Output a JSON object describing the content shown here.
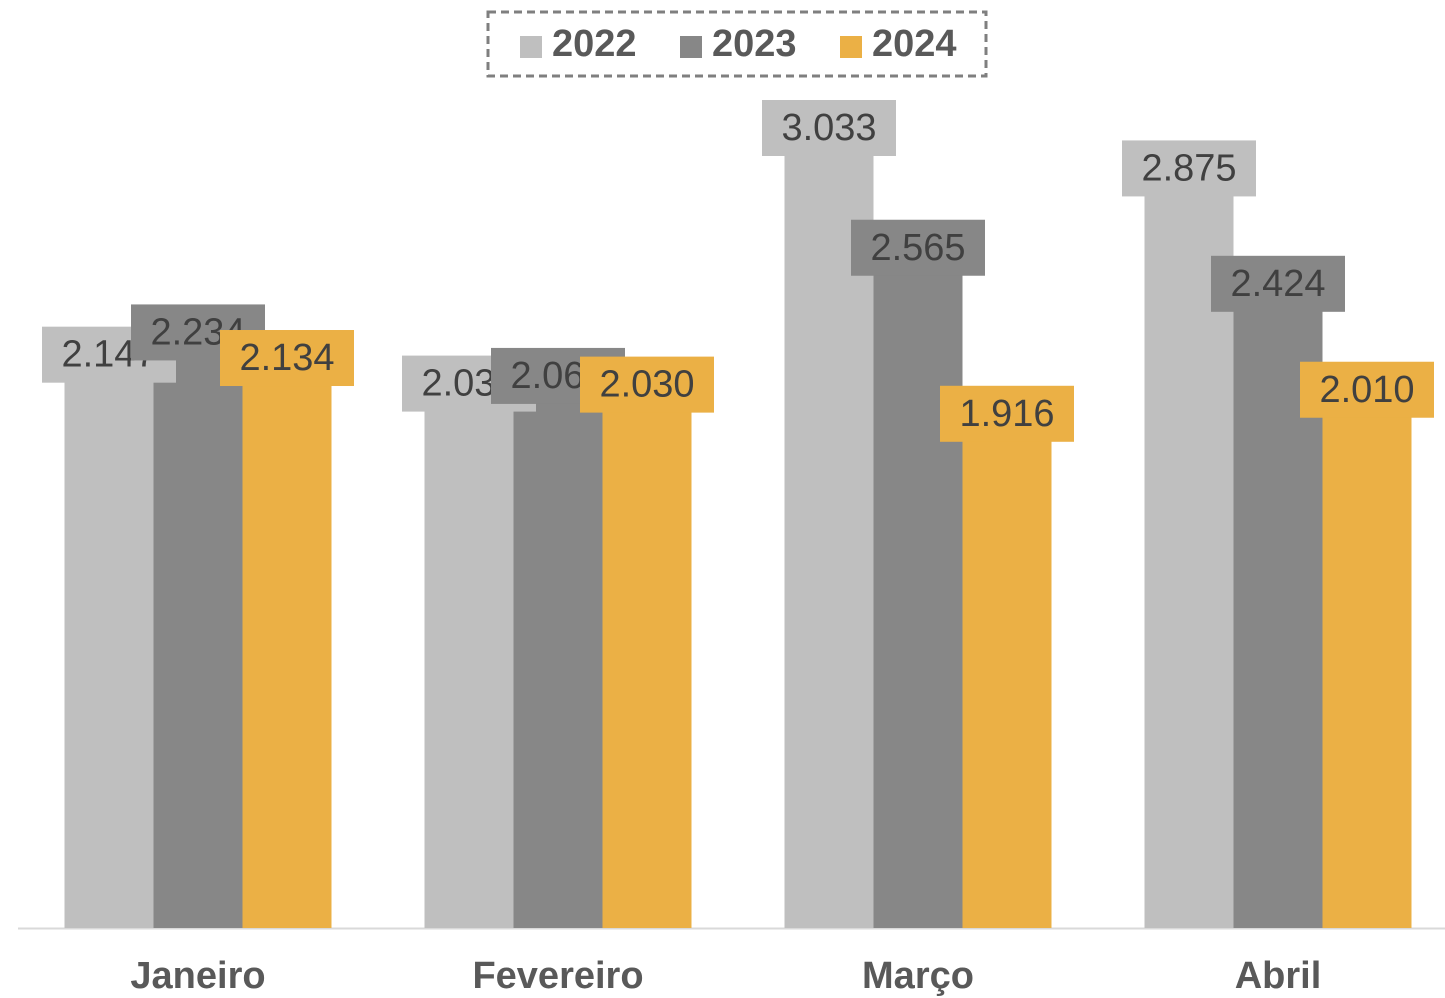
{
  "chart_data": {
    "type": "bar",
    "categories": [
      "Janeiro",
      "Fevereiro",
      "Março",
      "Abril"
    ],
    "series": [
      {
        "name": "2022",
        "color": "#bfbfbf",
        "values": [
          2147,
          2034,
          3033,
          2875
        ],
        "value_labels": [
          "2.147",
          "2.034",
          "3.033",
          "2.875"
        ]
      },
      {
        "name": "2023",
        "color": "#878787",
        "values": [
          2234,
          2064,
          2565,
          2424
        ],
        "value_labels": [
          "2.234",
          "2.064",
          "2.565",
          "2.424"
        ]
      },
      {
        "name": "2024",
        "color": "#ebb045",
        "values": [
          2134,
          2030,
          1916,
          2010
        ],
        "value_labels": [
          "2.134",
          "2.030",
          "1.916",
          "2.010"
        ]
      }
    ],
    "legend": "top"
  }
}
